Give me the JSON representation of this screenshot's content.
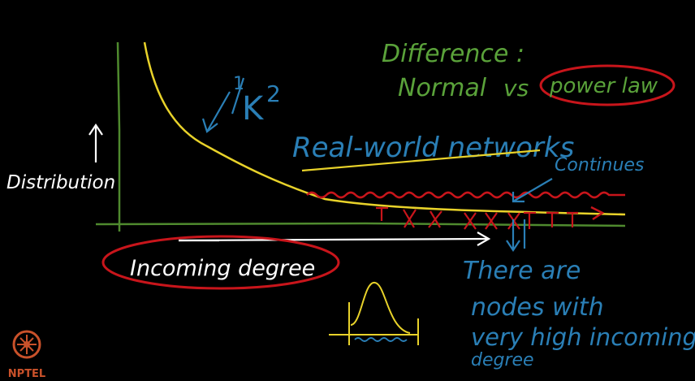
{
  "colors": {
    "background": "#000000",
    "axis": "#4f8a2e",
    "curve": "#e8d22a",
    "annotation": "#c8151b",
    "white": "#ffffff",
    "green_text": "#5aa23a",
    "blue_text": "#2a7fb6",
    "logo": "#c9512a"
  },
  "labels": {
    "y_axis": "Distribution",
    "x_axis": "Incoming degree",
    "formula_num": "1",
    "formula_den": "K",
    "formula_exp": "2",
    "difference_title": "Difference :",
    "normal": "Normal",
    "vs": "vs",
    "power_law": "power law",
    "real_world": "Real-world networks",
    "continues": "Continues",
    "there_are_1": "There are",
    "there_are_2": "nodes with",
    "there_are_3": "very high incoming",
    "there_are_4": "degree",
    "logo_text": "NPTEL"
  }
}
